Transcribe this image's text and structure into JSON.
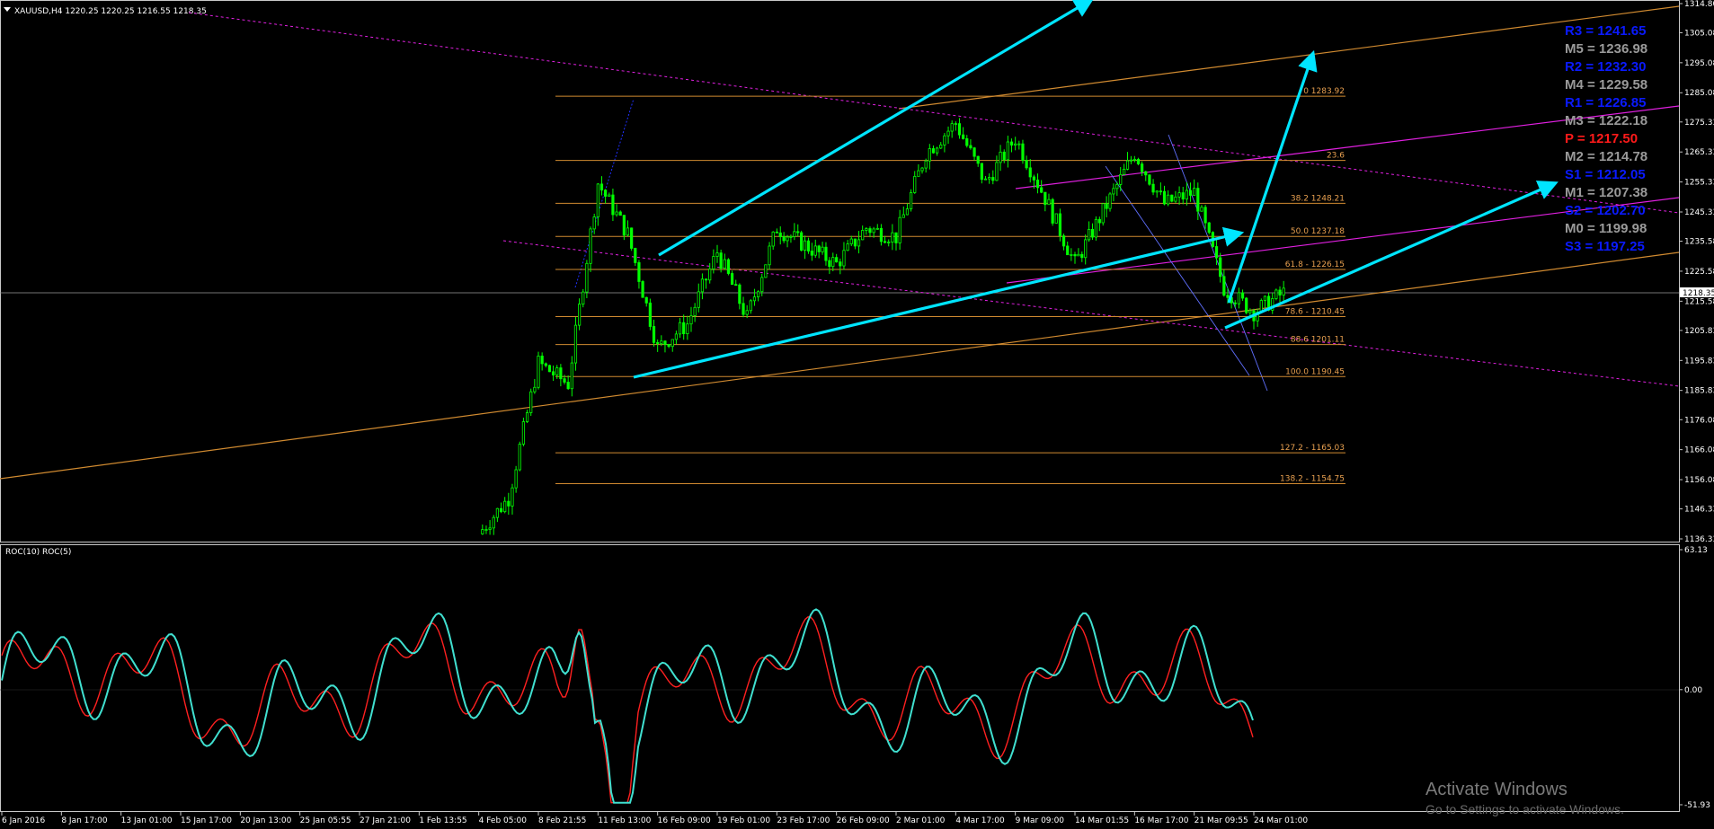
{
  "symbol_header": "XAUUSD,H4  1220.25 1220.25 1216.55 1218.35",
  "indicator_header": "ROC(10)  ROC(5)",
  "current_price_label": "1218.35",
  "price_axis_labels": [
    "1314.80",
    "1305.08",
    "1295.08",
    "1285.08",
    "1275.33",
    "1265.33",
    "1255.33",
    "1245.33",
    "1235.58",
    "1225.58",
    "1215.58",
    "1205.83",
    "1195.83",
    "1185.83",
    "1176.08",
    "1166.08",
    "1156.08",
    "1146.33",
    "1136.33"
  ],
  "roc_axis_labels": [
    "63.13",
    "0.00",
    "-51.93"
  ],
  "time_axis_labels": [
    "6 Jan 2016",
    "8 Jan 17:00",
    "13 Jan 01:00",
    "15 Jan 17:00",
    "20 Jan 13:00",
    "25 Jan 05:55",
    "27 Jan 21:00",
    "1 Feb 13:55",
    "4 Feb 05:00",
    "8 Feb 21:55",
    "11 Feb 13:00",
    "16 Feb 09:00",
    "19 Feb 01:00",
    "23 Feb 17:00",
    "26 Feb 09:00",
    "2 Mar 01:00",
    "4 Mar 17:00",
    "9 Mar 09:00",
    "14 Mar 01:55",
    "16 Mar 17:00",
    "21 Mar 09:55",
    "24 Mar 01:00"
  ],
  "fib_levels": [
    {
      "label": "0 1283.92",
      "price": 1283.92
    },
    {
      "label": "23.6",
      "price": 1262.5
    },
    {
      "label": "38.2 1248.21",
      "price": 1248.21
    },
    {
      "label": "50.0 1237.18",
      "price": 1237.18
    },
    {
      "label": "61.8 - 1226.15",
      "price": 1226.15
    },
    {
      "label": "78.6 - 1210.45",
      "price": 1210.45
    },
    {
      "label": "88.6 1201.11",
      "price": 1201.11
    },
    {
      "label": "100.0 1190.45",
      "price": 1190.45
    },
    {
      "label": "127.2 - 1165.03",
      "price": 1165.03
    },
    {
      "label": "138.2 - 1154.75",
      "price": 1154.75
    }
  ],
  "pivots": [
    {
      "label": "R3 = 1241.65",
      "color": "#0a1aff"
    },
    {
      "label": "M5 = 1236.98",
      "color": "#9a9a9a"
    },
    {
      "label": "R2 = 1232.30",
      "color": "#0a1aff"
    },
    {
      "label": "M4 = 1229.58",
      "color": "#9a9a9a"
    },
    {
      "label": "R1 = 1226.85",
      "color": "#0a1aff"
    },
    {
      "label": "M3 = 1222.18",
      "color": "#9a9a9a"
    },
    {
      "label": "P   = 1217.50",
      "color": "#ff1a1a"
    },
    {
      "label": "M2 = 1214.78",
      "color": "#9a9a9a"
    },
    {
      "label": "S1 = 1212.05",
      "color": "#0a1aff"
    },
    {
      "label": "M1 = 1207.38",
      "color": "#9a9a9a"
    },
    {
      "label": "S2 = 1202.70",
      "color": "#0a1aff"
    },
    {
      "label": "M0 = 1199.98",
      "color": "#9a9a9a"
    },
    {
      "label": "S3 = 1197.25",
      "color": "#0a1aff"
    }
  ],
  "watermark": {
    "title": "Activate Windows",
    "subtitle": "Go to Settings to activate Windows."
  },
  "colors": {
    "candles": "#00ff00",
    "roc10": "#ff2020",
    "roc5": "#40e0d0",
    "arrows": "#00e5ff",
    "fib": "#e8a050",
    "channel_orange": "#d08a30",
    "channel_magenta": "#e020e0"
  },
  "chart_data": [
    {
      "type": "candlestick",
      "title": "XAUUSD,H4",
      "ohlc_last": {
        "open": 1220.25,
        "high": 1220.25,
        "low": 1216.55,
        "close": 1218.35
      },
      "ylim": [
        1136.33,
        1314.8
      ],
      "x": [
        "6 Jan 2016",
        "8 Jan 17:00",
        "13 Jan 01:00",
        "15 Jan 17:00",
        "20 Jan 13:00",
        "25 Jan 05:55",
        "27 Jan 21:00",
        "1 Feb 13:55",
        "4 Feb 05:00",
        "8 Feb 21:55",
        "11 Feb 13:00",
        "16 Feb 09:00",
        "19 Feb 01:00",
        "23 Feb 17:00",
        "26 Feb 09:00",
        "2 Mar 01:00",
        "4 Mar 17:00",
        "9 Mar 09:00",
        "14 Mar 01:55",
        "16 Mar 17:00",
        "21 Mar 09:55",
        "24 Mar 01:00"
      ],
      "close_path": [
        {
          "x": "4 Feb 05:00",
          "y": 1138
        },
        {
          "x": "4 Feb 05:00",
          "y": 1150
        },
        {
          "x": "8 Feb 21:55",
          "y": 1195
        },
        {
          "x": "8 Feb 21:55",
          "y": 1188
        },
        {
          "x": "11 Feb 13:00",
          "y": 1255
        },
        {
          "x": "11 Feb 13:00",
          "y": 1238
        },
        {
          "x": "16 Feb 09:00",
          "y": 1200
        },
        {
          "x": "16 Feb 09:00",
          "y": 1208
        },
        {
          "x": "19 Feb 01:00",
          "y": 1232
        },
        {
          "x": "19 Feb 01:00",
          "y": 1210
        },
        {
          "x": "23 Feb 17:00",
          "y": 1240
        },
        {
          "x": "26 Feb 09:00",
          "y": 1228
        },
        {
          "x": "26 Feb 09:00",
          "y": 1240
        },
        {
          "x": "2 Mar 01:00",
          "y": 1237
        },
        {
          "x": "2 Mar 01:00",
          "y": 1265
        },
        {
          "x": "4 Mar 17:00",
          "y": 1275
        },
        {
          "x": "4 Mar 17:00",
          "y": 1255
        },
        {
          "x": "9 Mar 09:00",
          "y": 1270
        },
        {
          "x": "9 Mar 09:00",
          "y": 1250
        },
        {
          "x": "14 Mar 01:55",
          "y": 1228
        },
        {
          "x": "16 Mar 17:00",
          "y": 1265
        },
        {
          "x": "16 Mar 17:00",
          "y": 1248
        },
        {
          "x": "21 Mar 09:55",
          "y": 1252
        },
        {
          "x": "21 Mar 09:55",
          "y": 1220
        },
        {
          "x": "24 Mar 01:00",
          "y": 1212
        },
        {
          "x": "24 Mar 01:00",
          "y": 1218.35
        }
      ]
    },
    {
      "type": "line",
      "title": "ROC(10)  ROC(5)",
      "ylim": [
        -51.93,
        63.13
      ],
      "series": [
        {
          "name": "ROC(10)",
          "color": "#ff2020"
        },
        {
          "name": "ROC(5)",
          "color": "#40e0d0"
        }
      ]
    }
  ]
}
